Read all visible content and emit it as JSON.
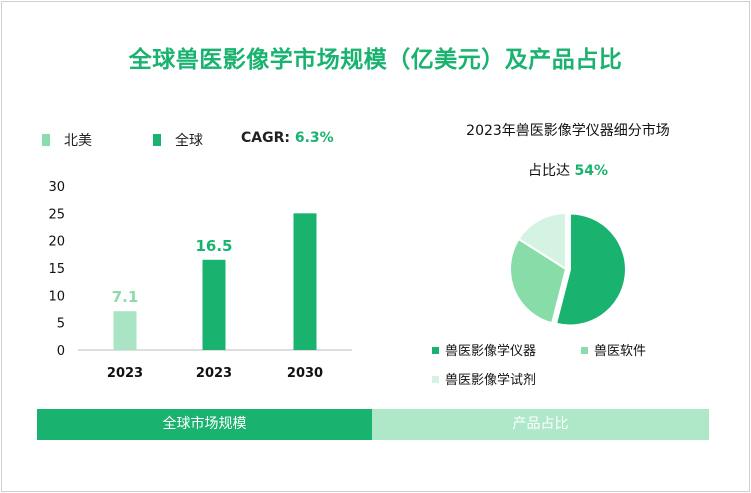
{
  "title": "全球兽医影像学市场规模（亿美元）及产品占比",
  "colors": {
    "accent": "#19b36f",
    "light_green": "#a9e5c5",
    "mid_green": "#88dca8",
    "pale_green": "#d4f3e2",
    "footer_right": "#aee8c8"
  },
  "bar_legend": [
    {
      "label": "北美",
      "color": "#8bdcaa"
    },
    {
      "label": "全球",
      "color": "#19b36f"
    }
  ],
  "cagr": {
    "label": "CAGR:",
    "value": "6.3%"
  },
  "pie_header": {
    "line1": "2023年兽医影像学仪器细分市场",
    "line2_label": "占比达",
    "line2_value": "54%"
  },
  "pie_legend": [
    {
      "label": "兽医影像学仪器",
      "color": "#19b36f"
    },
    {
      "label": "兽医软件",
      "color": "#8bdcaa"
    },
    {
      "label": "兽医影像学试剂",
      "color": "#d4f3e2"
    }
  ],
  "footer": {
    "left": "全球市场规模",
    "right": "产品占比"
  },
  "chart_data": [
    {
      "type": "bar",
      "categories": [
        "2023",
        "2023",
        "2030"
      ],
      "values": [
        7.1,
        16.5,
        25
      ],
      "data_labels": [
        "7.1",
        "16.5",
        ""
      ],
      "bar_colors": [
        "#a9e5c5",
        "#19b36f",
        "#19b36f"
      ],
      "label_colors": [
        "#8bdcaa",
        "#19b36f",
        "#19b36f"
      ],
      "ylim": [
        0,
        30
      ],
      "yticks": [
        0,
        5,
        10,
        15,
        20,
        25,
        30
      ],
      "grid": false
    },
    {
      "type": "pie",
      "labels": [
        "兽医影像学仪器",
        "兽医软件",
        "兽医影像学试剂"
      ],
      "values": [
        54,
        30,
        16
      ],
      "colors": [
        "#19b36f",
        "#88dca8",
        "#d4f3e2"
      ]
    }
  ]
}
